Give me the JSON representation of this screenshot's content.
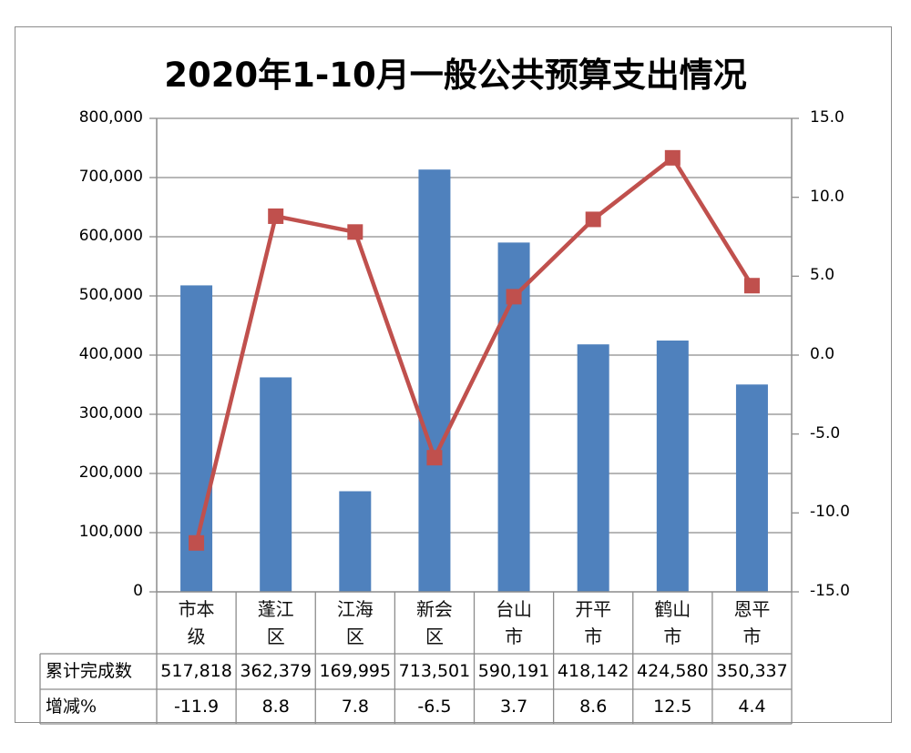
{
  "chart_data": {
    "type": "bar+line",
    "title": "2020年1-10月一般公共预算支出情况",
    "categories": [
      "市本级",
      "蓬江区",
      "江海区",
      "新会区",
      "台山市",
      "开平市",
      "鹤山市",
      "恩平市"
    ],
    "category_lines": [
      [
        "市本",
        "级"
      ],
      [
        "蓬江",
        "区"
      ],
      [
        "江海",
        "区"
      ],
      [
        "新会",
        "区"
      ],
      [
        "台山",
        "市"
      ],
      [
        "开平",
        "市"
      ],
      [
        "鹤山",
        "市"
      ],
      [
        "恩平",
        "市"
      ]
    ],
    "series": [
      {
        "name": "累计完成数",
        "type": "bar",
        "axis": "left",
        "color": "#4F81BD",
        "values": [
          517818,
          362379,
          169995,
          713501,
          590191,
          418142,
          424580,
          350337
        ],
        "display": [
          "517,818",
          "362,379",
          "169,995",
          "713,501",
          "590,191",
          "418,142",
          "424,580",
          "350,337"
        ]
      },
      {
        "name": "增减%",
        "type": "line",
        "axis": "right",
        "color": "#C0504D",
        "marker": "square",
        "values": [
          -11.9,
          8.8,
          7.8,
          -6.5,
          3.7,
          8.6,
          12.5,
          4.4
        ],
        "display": [
          "-11.9",
          "8.8",
          "7.8",
          "-6.5",
          "3.7",
          "8.6",
          "12.5",
          "4.4"
        ]
      }
    ],
    "y_left": {
      "ylim": [
        0,
        800000
      ],
      "ticks": [
        "800,000",
        "700,000",
        "600,000",
        "500,000",
        "400,000",
        "300,000",
        "200,000",
        "100,000",
        "0"
      ]
    },
    "y_right": {
      "ylim": [
        -15,
        15
      ],
      "ticks": [
        "15.0",
        "10.0",
        "5.0",
        "0.0",
        "-5.0",
        "-10.0",
        "-15.0"
      ]
    },
    "grid": true,
    "legend": "data table below chart",
    "xlabel": "",
    "ylabel": ""
  },
  "table": {
    "row_labels": [
      "累计完成数",
      "增减%"
    ]
  }
}
